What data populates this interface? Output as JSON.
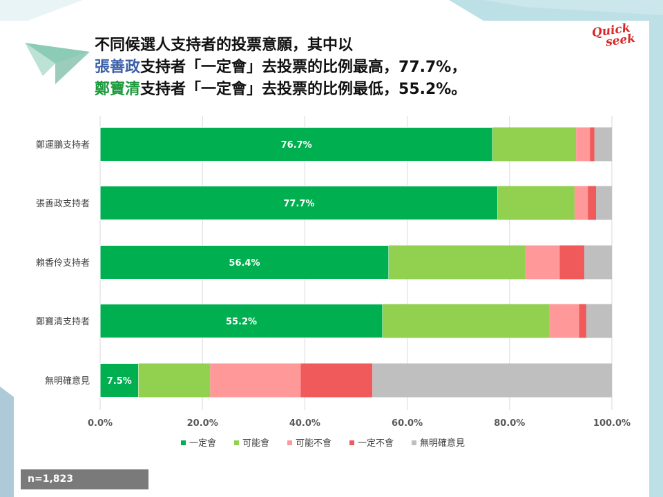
{
  "title": {
    "line1": "不同候選人支持者的投票意願，其中以",
    "line2_name": "張善政",
    "line2_rest": "支持者「一定會」去投票的比例最高，77.7%，",
    "line3_name": "鄭寶清",
    "line3_rest": "支持者「一定會」去投票的比例最低，55.2%。"
  },
  "logo": {
    "line1": "Quick",
    "line2": "seek"
  },
  "footer": {
    "sample": "n=1,823"
  },
  "colors": {
    "definitely": "#00b050",
    "maybe_yes": "#92d050",
    "maybe_no": "#ff9999",
    "definitely_no": "#f05a5a",
    "no_opinion": "#bfbfbf"
  },
  "chart_data": {
    "type": "bar",
    "orientation": "horizontal",
    "stacked": true,
    "categories": [
      "鄭運鵬支持者",
      "張善政支持者",
      "賴香伶支持者",
      "鄭寶清支持者",
      "無明確意見"
    ],
    "series": [
      {
        "name": "一定會",
        "values": [
          76.7,
          77.7,
          56.4,
          55.2,
          7.5
        ]
      },
      {
        "name": "可能會",
        "values": [
          16.3,
          15.0,
          26.6,
          32.6,
          14.0
        ]
      },
      {
        "name": "可能不會",
        "values": [
          2.7,
          2.6,
          6.8,
          5.8,
          17.7
        ]
      },
      {
        "name": "一定不會",
        "values": [
          0.9,
          1.6,
          4.8,
          1.4,
          14.0
        ]
      },
      {
        "name": "無明確意見",
        "values": [
          3.4,
          3.1,
          5.4,
          5.0,
          46.8
        ]
      }
    ],
    "data_labels": [
      "76.7%",
      "77.7%",
      "56.4%",
      "55.2%",
      "7.5%"
    ],
    "x_ticks": [
      "0.0%",
      "20.0%",
      "40.0%",
      "60.0%",
      "80.0%",
      "100.0%"
    ],
    "xlim": [
      0,
      100
    ],
    "grid": true,
    "legend_position": "bottom"
  }
}
